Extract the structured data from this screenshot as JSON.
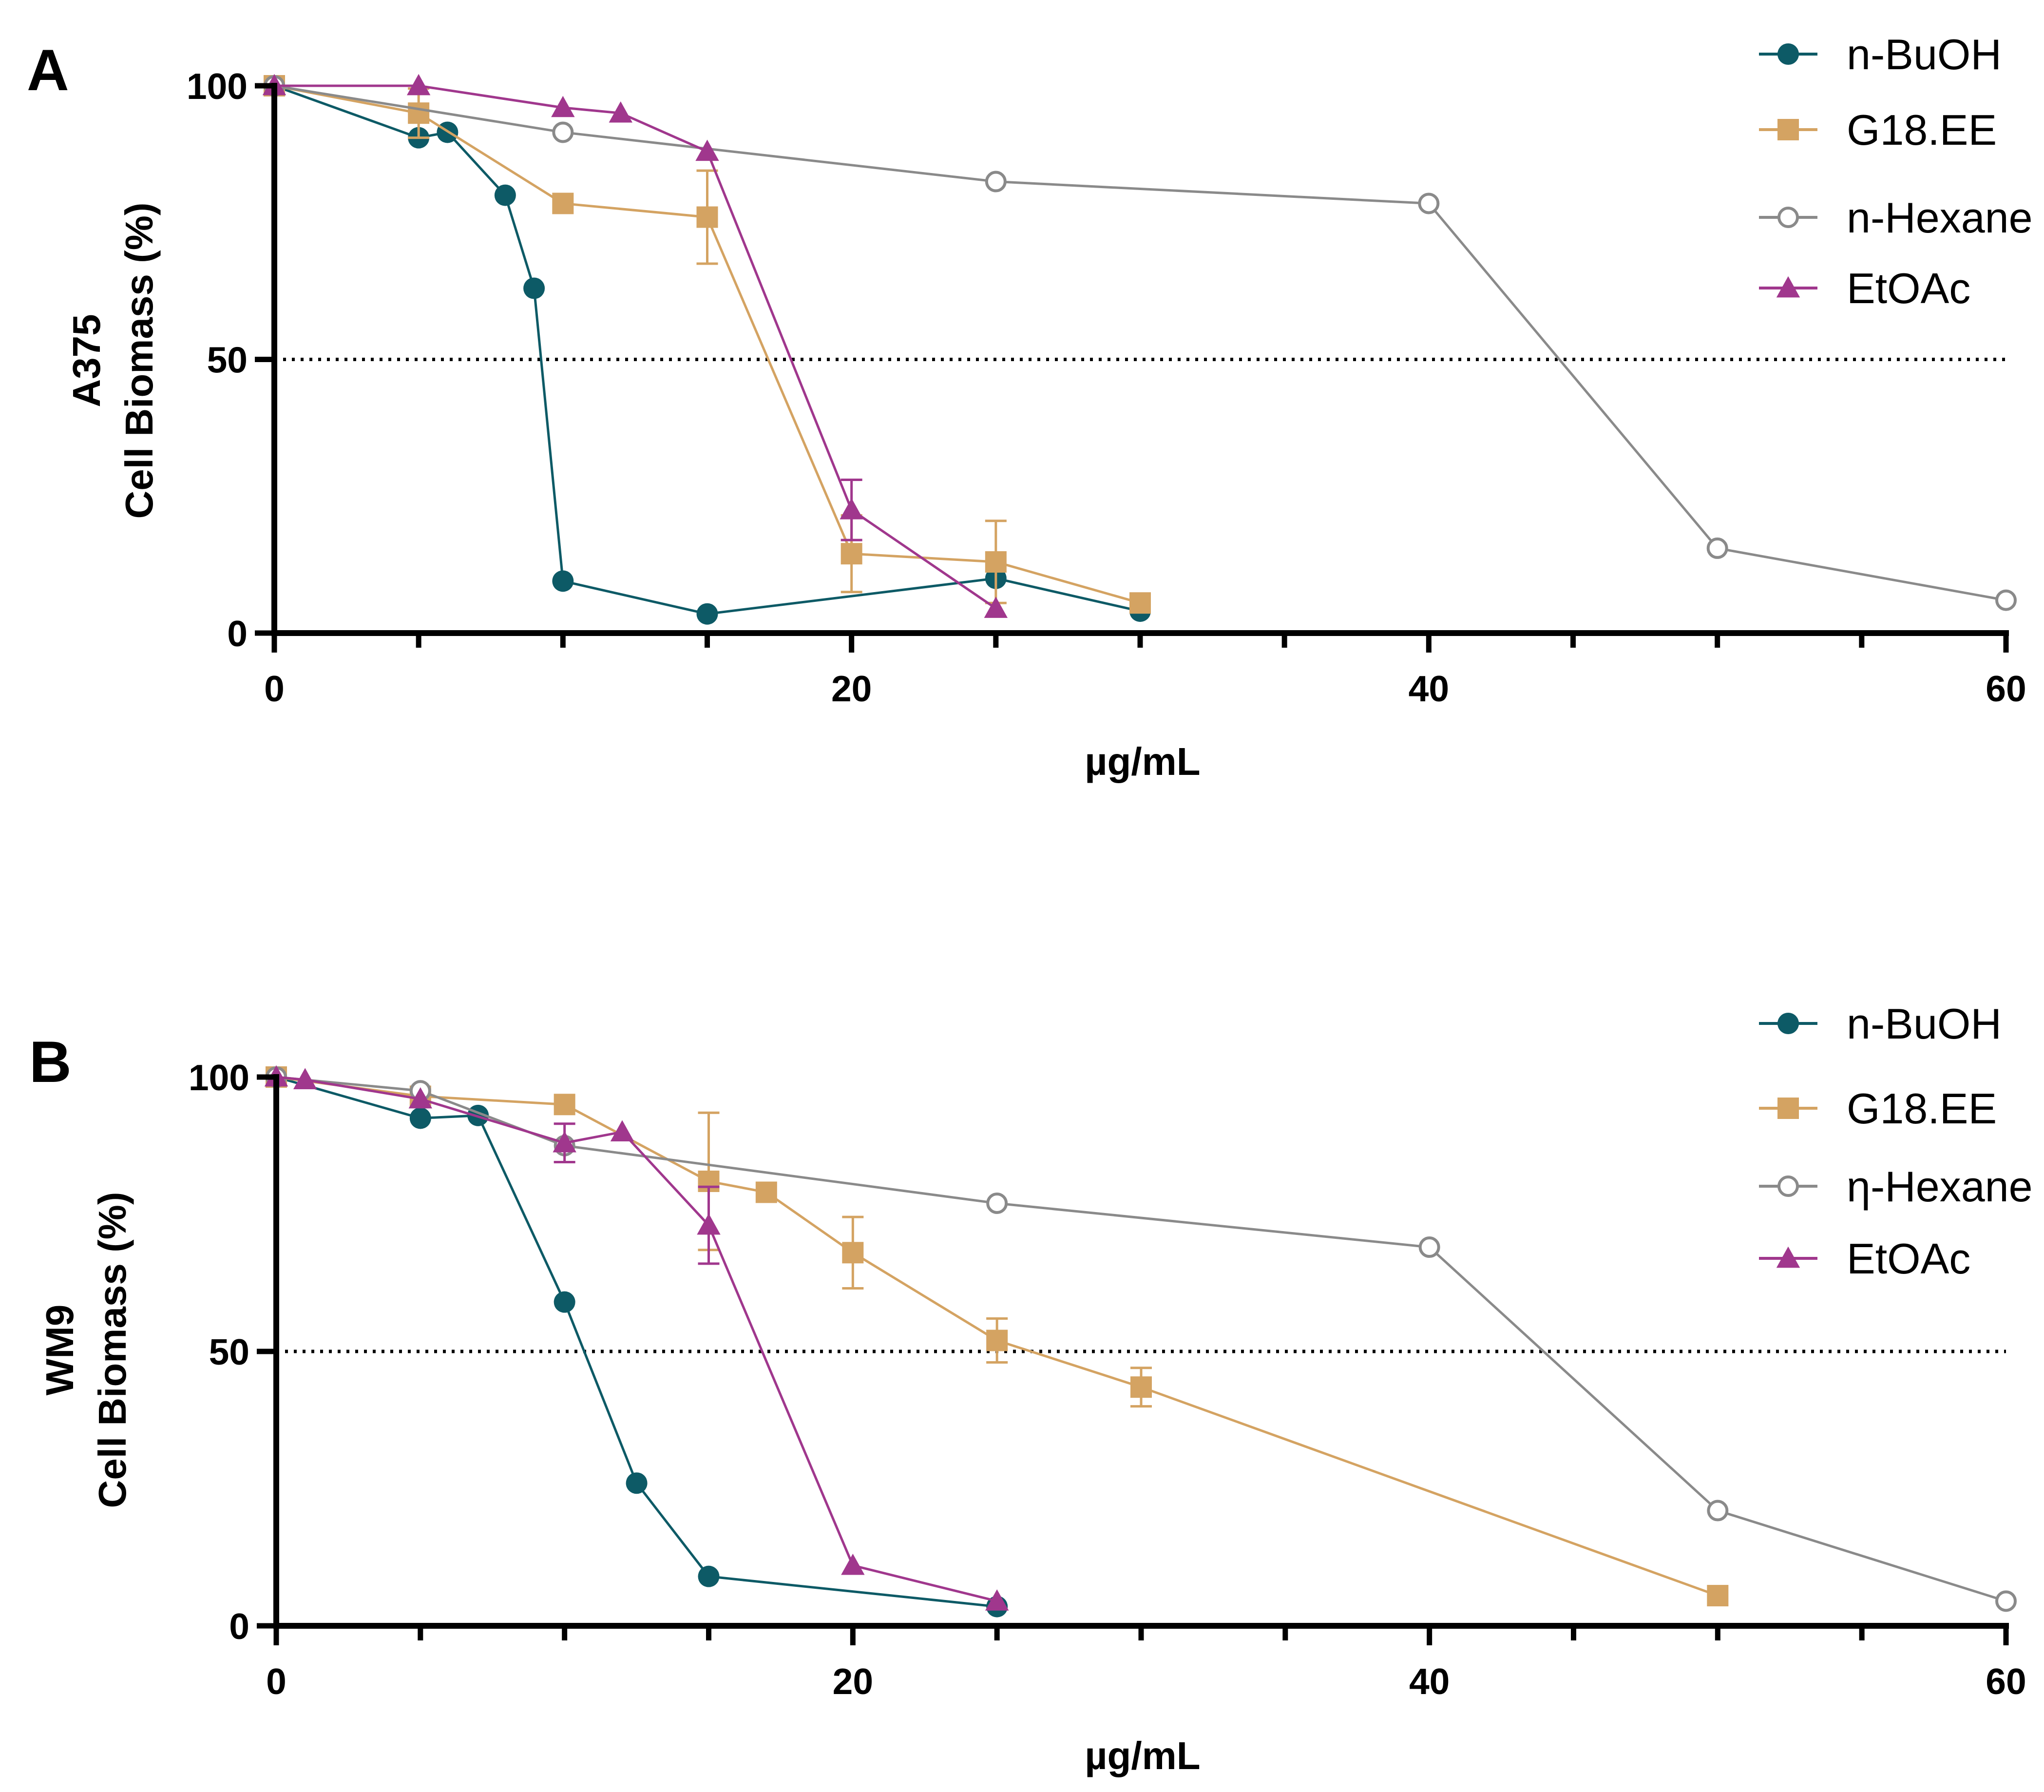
{
  "chart_data": [
    {
      "panel": "A",
      "type": "line",
      "xlabel": "µg/mL",
      "ylabel_line1": "A375",
      "ylabel_line2": "Cell Biomass (%)",
      "xlim": [
        0,
        60
      ],
      "ylim": [
        0,
        100
      ],
      "x_ticks": [
        0,
        20,
        40,
        60
      ],
      "y_ticks": [
        0,
        50,
        100
      ],
      "reference_line": 50,
      "legend": [
        "n-BuOH",
        "G18.EE",
        "n-Hexane",
        "EtOAc"
      ],
      "series": [
        {
          "name": "n-BuOH",
          "color": "#0d5a66",
          "marker": "circle",
          "x": [
            0,
            5,
            6,
            8,
            9,
            10,
            15,
            25,
            30
          ],
          "y": [
            100,
            90.5,
            91.5,
            80,
            63,
            9.5,
            3.5,
            10,
            4
          ],
          "err": [
            0,
            0,
            0,
            0,
            0,
            0,
            0,
            0,
            0
          ]
        },
        {
          "name": "G18.EE",
          "color": "#d4a362",
          "marker": "square",
          "x": [
            0,
            5,
            10,
            15,
            20,
            25,
            30
          ],
          "y": [
            100,
            95,
            78.5,
            76,
            14.5,
            13,
            5.5
          ],
          "err": [
            0,
            4.5,
            0,
            8.5,
            7,
            7.5,
            0
          ]
        },
        {
          "name": "n-Hexane",
          "color": "#8a8a8a",
          "marker": "open-circle",
          "x": [
            0,
            10,
            25,
            40,
            50,
            60
          ],
          "y": [
            100,
            91.5,
            82.5,
            78.5,
            15.5,
            6
          ],
          "err": [
            0,
            0,
            0,
            0,
            0,
            0
          ]
        },
        {
          "name": "EtOAc",
          "color": "#a0378d",
          "marker": "triangle",
          "x": [
            0,
            5,
            10,
            12,
            15,
            20,
            25
          ],
          "y": [
            100,
            100,
            96,
            95,
            88,
            22.5,
            4.5
          ],
          "err": [
            0,
            0,
            0,
            0,
            0,
            5.5,
            0
          ]
        }
      ]
    },
    {
      "panel": "B",
      "type": "line",
      "xlabel": "µg/mL",
      "ylabel_line1": "WM9",
      "ylabel_line2": "Cell Biomass (%)",
      "xlim": [
        0,
        60
      ],
      "ylim": [
        0,
        100
      ],
      "x_ticks": [
        0,
        20,
        40,
        60
      ],
      "y_ticks": [
        0,
        50,
        100
      ],
      "reference_line": 50,
      "legend": [
        "n-BuOH",
        "G18.EE",
        "η-Hexane",
        "EtOAc"
      ],
      "series": [
        {
          "name": "n-BuOH",
          "color": "#0d5a66",
          "marker": "circle",
          "x": [
            0,
            5,
            7,
            10,
            12.5,
            15,
            25
          ],
          "y": [
            100,
            92.5,
            93,
            59,
            26,
            9,
            3.5
          ],
          "err": [
            0,
            0,
            0,
            0,
            0,
            0,
            0
          ]
        },
        {
          "name": "G18.EE",
          "color": "#d4a362",
          "marker": "square",
          "x": [
            0,
            5,
            10,
            15,
            17,
            20,
            25,
            30,
            50
          ],
          "y": [
            100,
            96.5,
            95,
            81,
            79,
            68,
            52,
            43.5,
            5.5
          ],
          "err": [
            0,
            0,
            0,
            12.5,
            0,
            6.5,
            4,
            3.5,
            0
          ]
        },
        {
          "name": "η-Hexane",
          "color": "#8a8a8a",
          "marker": "open-circle",
          "x": [
            0,
            5,
            10,
            25,
            40,
            50,
            60
          ],
          "y": [
            100,
            97.5,
            87.5,
            77,
            69,
            21,
            4.5
          ],
          "err": [
            0,
            0,
            0,
            0,
            0,
            0,
            0
          ]
        },
        {
          "name": "EtOAc",
          "color": "#a0378d",
          "marker": "triangle",
          "x": [
            0,
            1,
            5,
            10,
            12,
            15,
            20,
            25
          ],
          "y": [
            100,
            99.5,
            96,
            88,
            90,
            73,
            11,
            4.5
          ],
          "err": [
            0,
            0,
            0,
            3.5,
            0,
            7,
            0,
            0
          ]
        }
      ]
    }
  ]
}
